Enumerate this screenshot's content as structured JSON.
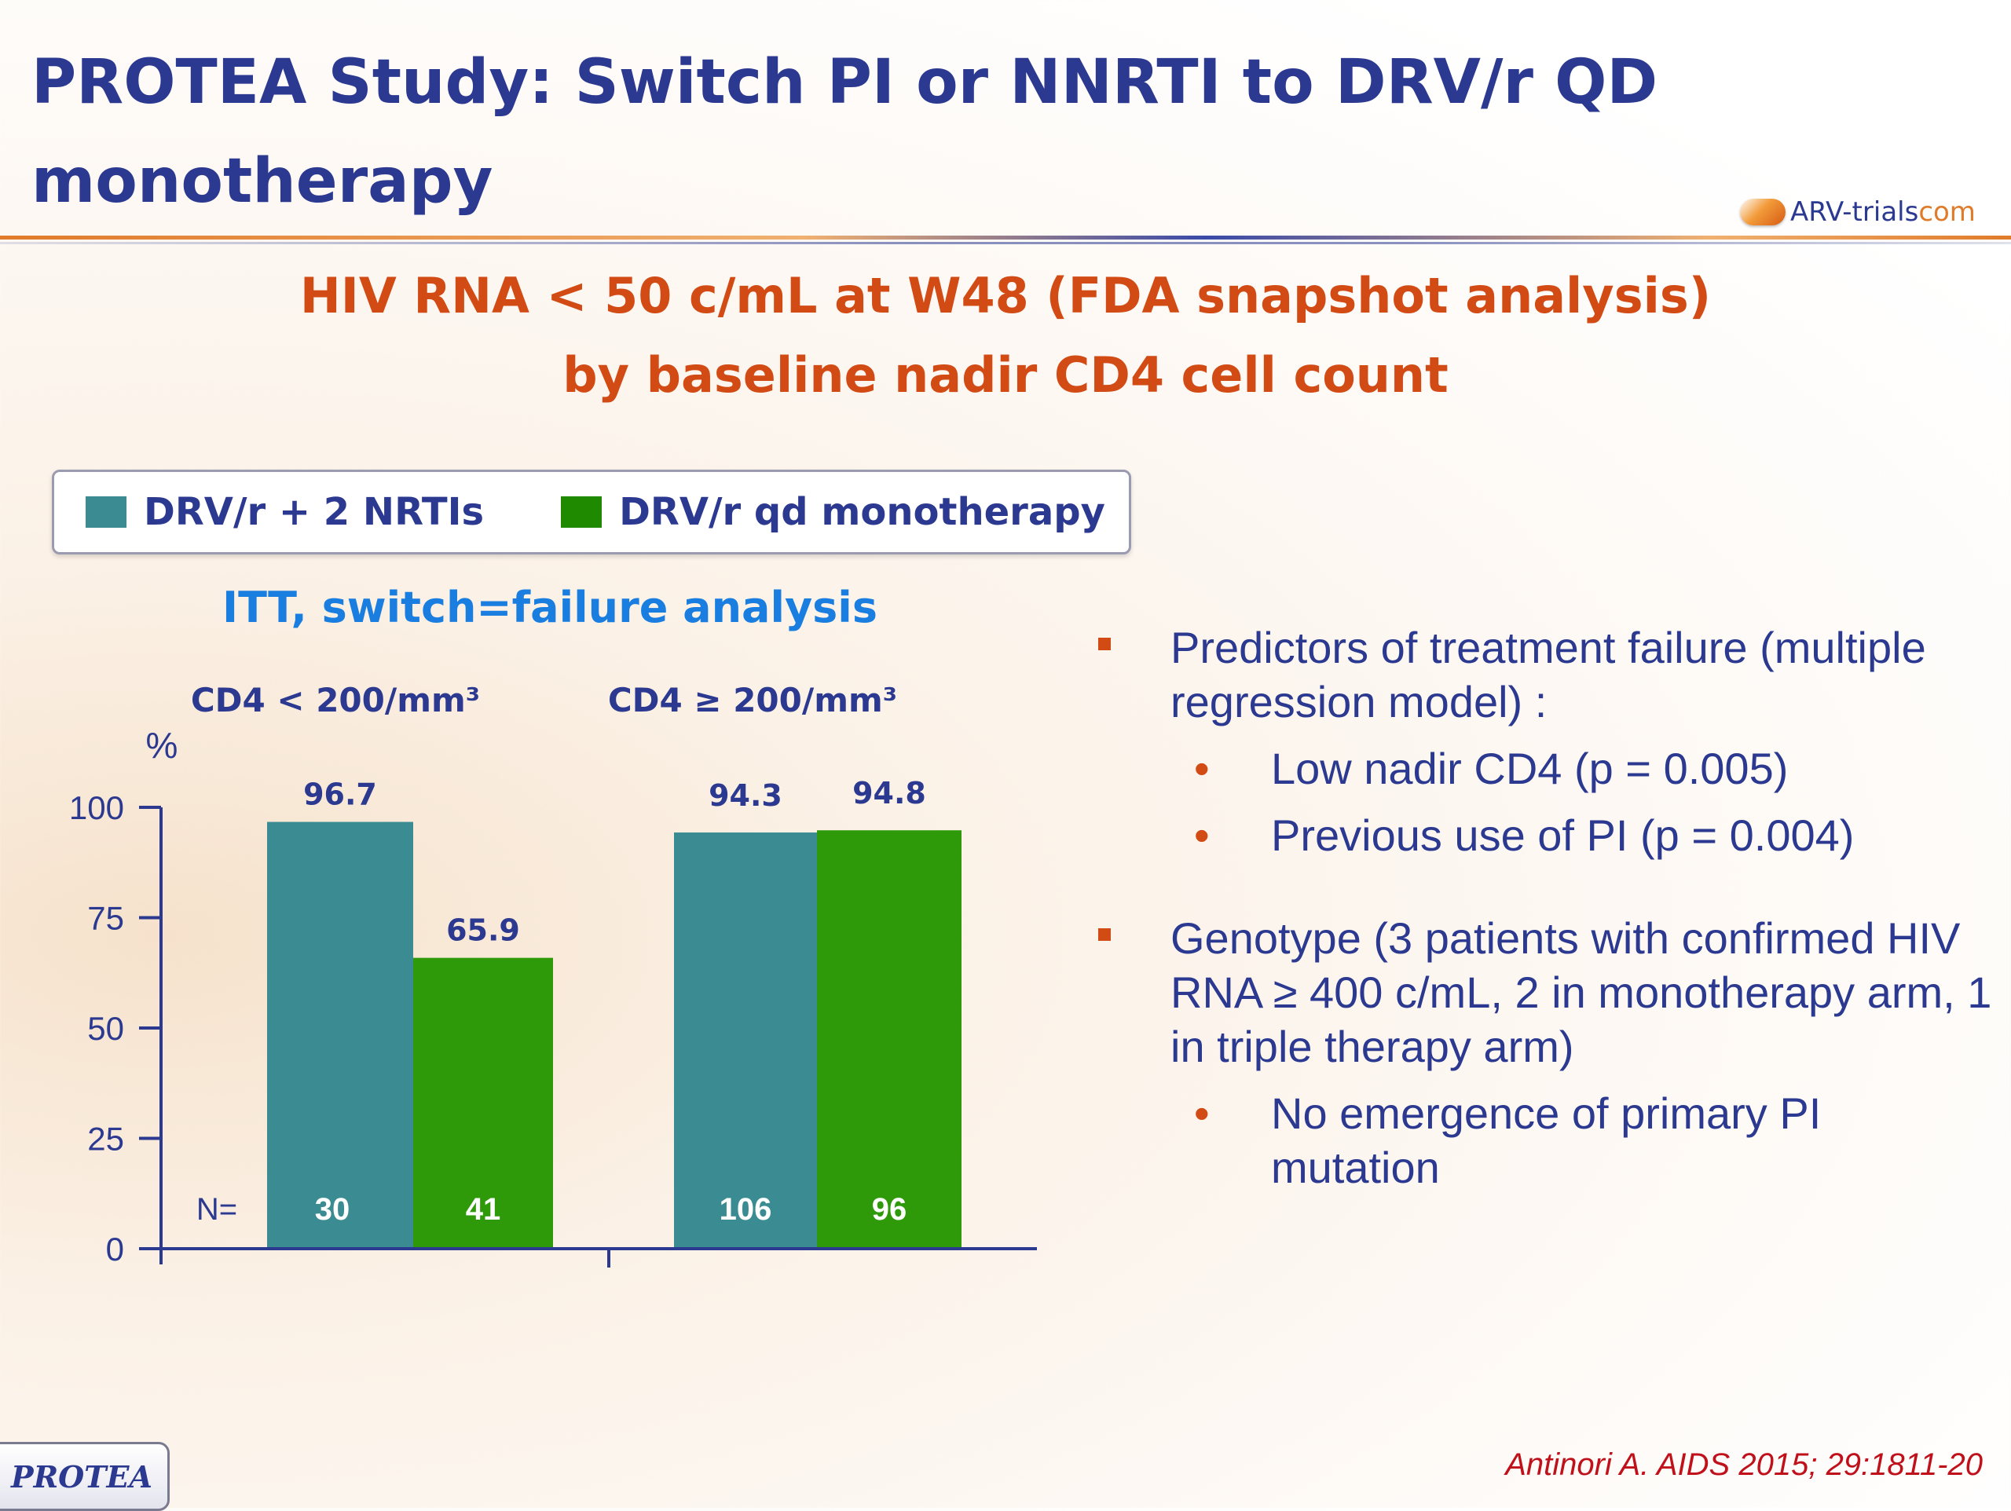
{
  "title": "PROTEA Study: Switch PI or NNRTI to DRV/r QD monotherapy",
  "logo_text": {
    "main": "ARV-trials",
    "suffix": "com"
  },
  "subtitle_line1": "HIV RNA < 50 c/mL at W48 (FDA snapshot analysis)",
  "subtitle_line2": "by baseline nadir CD4 cell count",
  "colors": {
    "teal": "#3b8c92",
    "green": "#2e9a0a",
    "navy": "#2b3990",
    "orange": "#d24a14"
  },
  "chart_data": {
    "type": "bar",
    "title": "ITT, switch=failure analysis",
    "ylabel": "%",
    "ylim": [
      0,
      100
    ],
    "yticks": [
      0,
      25,
      50,
      75,
      100
    ],
    "legend": [
      "DRV/r + 2 NRTIs",
      "DRV/r qd monotherapy"
    ],
    "legend_position": "top",
    "n_label": "N=",
    "categories": [
      "CD4 < 200/mm³",
      "CD4 ≥ 200/mm³"
    ],
    "series": [
      {
        "name": "DRV/r + 2 NRTIs",
        "color": "#3b8c92",
        "values": [
          96.7,
          94.3
        ],
        "labels": [
          "96.7",
          "94.3"
        ],
        "n": [
          "30",
          "106"
        ]
      },
      {
        "name": "DRV/r qd monotherapy",
        "color": "#2e9a0a",
        "values": [
          65.9,
          94.8
        ],
        "labels": [
          "65.9",
          "94.8"
        ],
        "n": [
          "41",
          "96"
        ]
      }
    ]
  },
  "bullets": [
    {
      "text": "Predictors of treatment failure (multiple regression model) :",
      "sub": [
        "Low nadir CD4 (p = 0.005)",
        "Previous use of PI (p = 0.004)"
      ]
    },
    {
      "text": "Genotype (3 patients with confirmed HIV RNA ≥ 400 c/mL, 2 in monotherapy arm, 1 in triple therapy arm)",
      "sub": [
        "No emergence of primary PI mutation"
      ]
    }
  ],
  "citation": "Antinori A. AIDS 2015; 29:1811-20",
  "badge": "PROTEA"
}
